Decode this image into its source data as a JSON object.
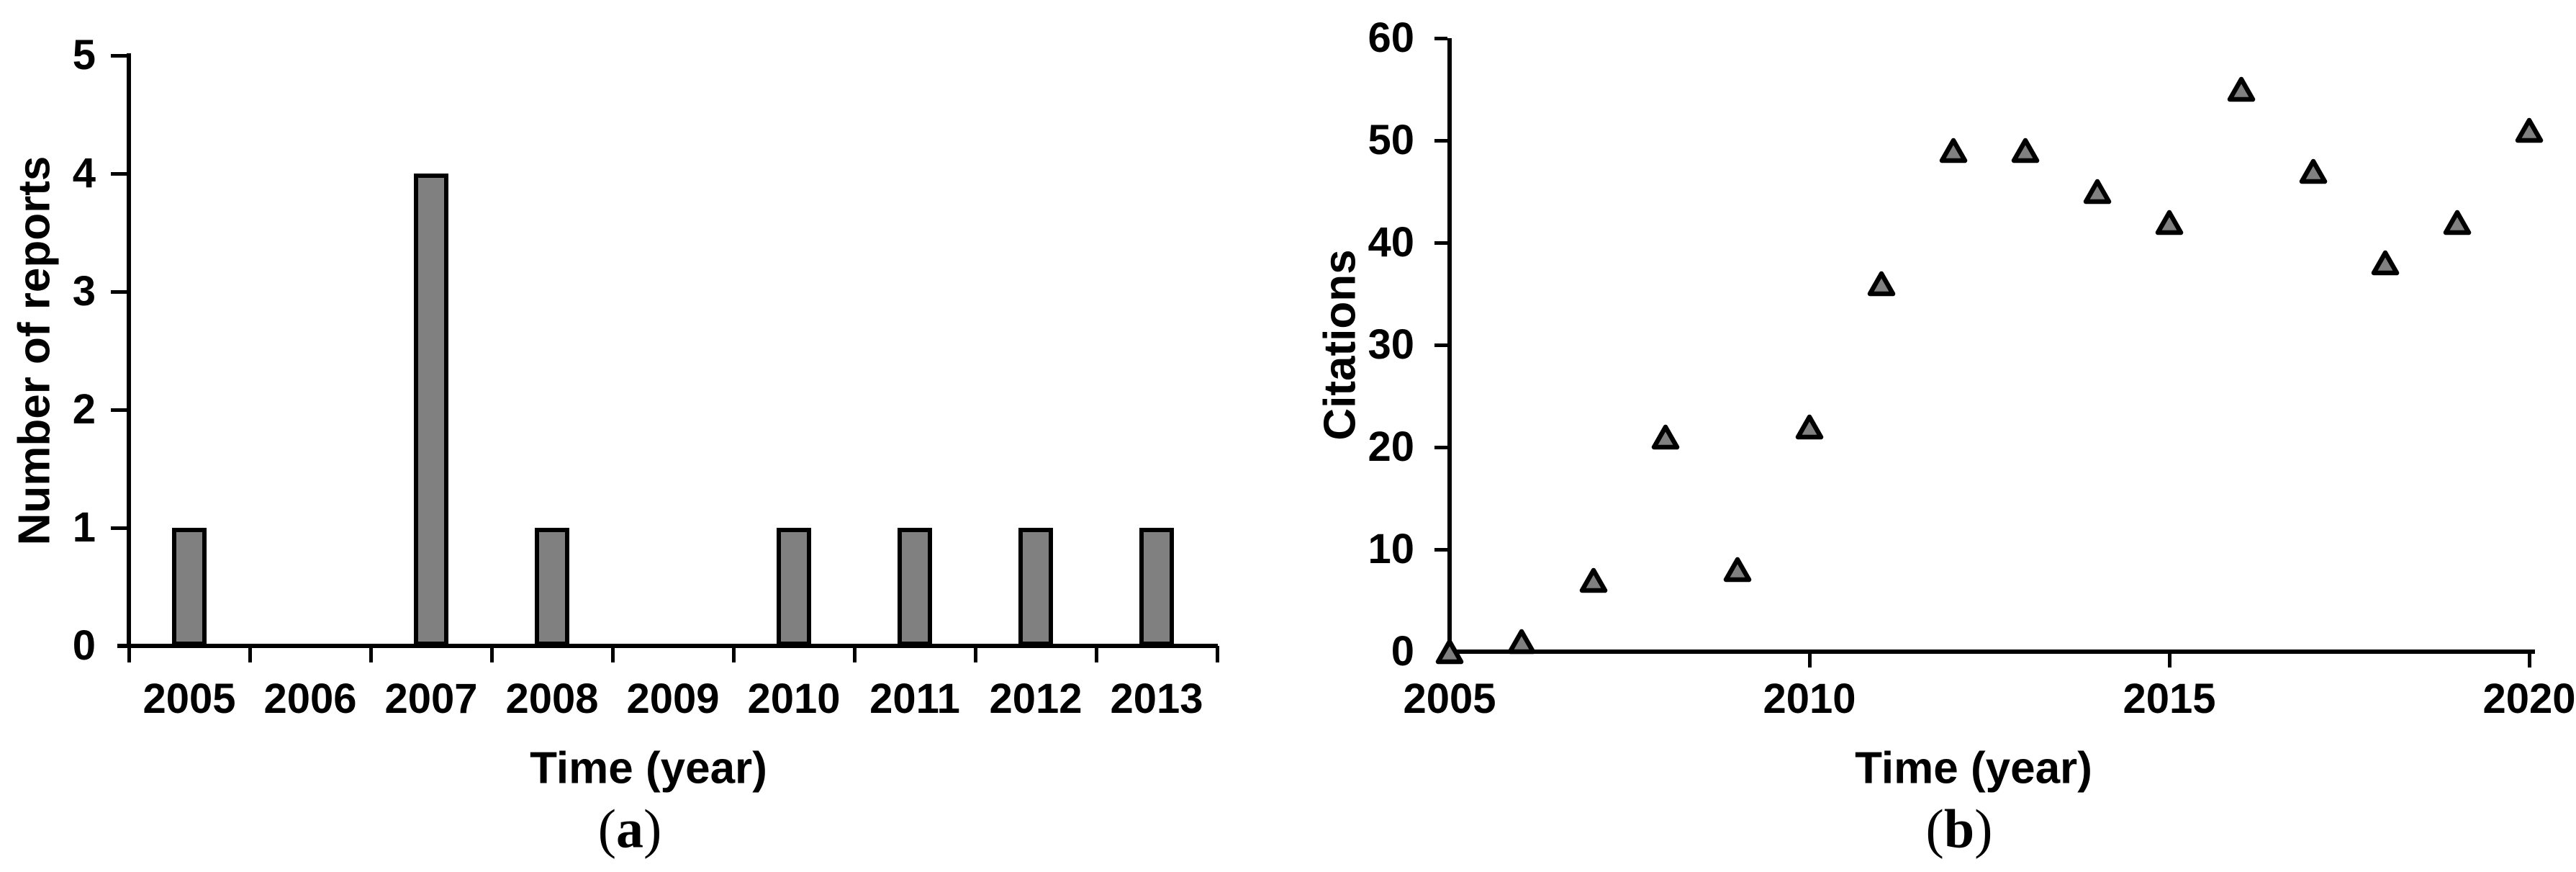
{
  "figure": {
    "background": "#ffffff",
    "text_color": "#000000",
    "marker_fill": "#808080",
    "marker_border": "#000000"
  },
  "chart_data": [
    {
      "id": "a",
      "type": "bar",
      "caption": "(a)",
      "xlabel": "Time (year)",
      "ylabel": "Number of reports",
      "categories": [
        "2005",
        "2006",
        "2007",
        "2008",
        "2009",
        "2010",
        "2011",
        "2012",
        "2013"
      ],
      "values": [
        1,
        0,
        4,
        1,
        0,
        1,
        1,
        1,
        1
      ],
      "ylim": [
        0,
        5
      ],
      "yticks": [
        0,
        1,
        2,
        3,
        4,
        5
      ],
      "grid": false,
      "legend": null,
      "bar_color": "#808080",
      "bar_border": "#000000"
    },
    {
      "id": "b",
      "type": "scatter",
      "caption": "(b)",
      "xlabel": "Time (year)",
      "ylabel": "Citations",
      "x": [
        2005,
        2006,
        2007,
        2008,
        2009,
        2010,
        2011,
        2012,
        2013,
        2014,
        2015,
        2016,
        2017,
        2018,
        2019,
        2020
      ],
      "y": [
        0,
        1,
        7,
        21,
        8,
        22,
        36,
        49,
        49,
        45,
        42,
        55,
        47,
        38,
        42,
        51
      ],
      "xlim": [
        2005,
        2020
      ],
      "ylim": [
        0,
        60
      ],
      "xticks": [
        2005,
        2010,
        2015,
        2020
      ],
      "yticks": [
        0,
        10,
        20,
        30,
        40,
        50,
        60
      ],
      "grid": false,
      "legend": null,
      "marker": "triangle-up",
      "marker_color": "#808080",
      "marker_border": "#000000"
    }
  ]
}
